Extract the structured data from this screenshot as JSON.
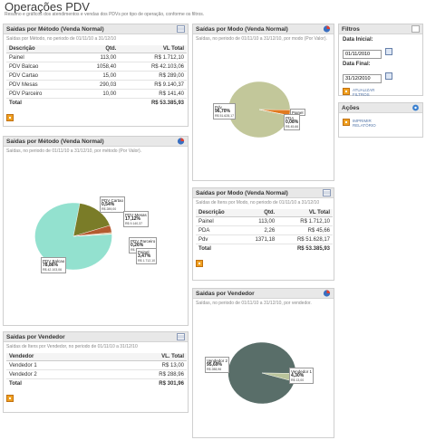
{
  "page": {
    "title": "Operações PDV",
    "subtitle": "Resumo e gráficos dos atendimentos e vendas dos PDVs por tipo de operação, conforme os filtros."
  },
  "metodo_table": {
    "title": "Saidas por Método (Venda Normal)",
    "desc": "Saídas por Método, no periodo de 01/11/10 a 31/12/10",
    "headers": [
      "Descrição",
      "Qtd.",
      "VL Total"
    ],
    "rows": [
      [
        "Painel",
        "113,00",
        "R$ 1.712,10"
      ],
      [
        "PDV Balcao",
        "1058,40",
        "R$ 42.103,06"
      ],
      [
        "PDV Cartao",
        "15,00",
        "R$ 289,00"
      ],
      [
        "PDV Mesas",
        "290,03",
        "R$ 9.140,37"
      ],
      [
        "PDV Parceiro",
        "10,00",
        "R$ 141,40"
      ]
    ],
    "total_label": "Total",
    "total_value": "R$ 53.385,93"
  },
  "metodo_chart": {
    "title": "Saidas por Método (Venda Normal)",
    "desc": "Saídas, no periodo de 01/11/10 a 31/12/10, por método (Por Valor).",
    "labels": [
      {
        "name": "PDV Cartao",
        "pct": "0,54%",
        "val": "R$ 289,00"
      },
      {
        "name": "PDV Mesas",
        "pct": "17,12%",
        "val": "R$ 9.140,37"
      },
      {
        "name": "PDV Parceiro",
        "pct": "0,26%",
        "val": "R$ 141,40"
      },
      {
        "name": "Painel",
        "pct": "3,47%",
        "val": "R$ 1.712,10"
      },
      {
        "name": "PDV Balcao",
        "pct": "78,86%",
        "val": "R$ 42.103,06"
      }
    ]
  },
  "vendedor_table": {
    "title": "Saidas por Vendedor",
    "desc": "Saídas de Itens por Vendedor, no periodo de 01/11/10 a 31/12/10",
    "headers": [
      "Vendedor",
      "VL. Total"
    ],
    "rows": [
      [
        "Vendedor 1",
        "R$ 13,00"
      ],
      [
        "Vendedor 2",
        "R$ 288,96"
      ]
    ],
    "total_label": "Total",
    "total_value": "R$ 301,96"
  },
  "modo_chart": {
    "title": "Saídas por Modo (Venda Normal)",
    "desc": "Saídas, no periodo de 01/11/10 a 31/12/10, por modo (Por Valor).",
    "labels": [
      {
        "name": "Pdv",
        "pct": "96,70%",
        "val": "R$ 51.628,17"
      },
      {
        "name": "Painel",
        "pct": "",
        "val": ""
      },
      {
        "name": "PDA",
        "pct": "0,08%",
        "val": "R$ 45,66"
      }
    ]
  },
  "modo_table": {
    "title": "Saídas por Modo (Venda Normal)",
    "desc": "Saídas de Itens por Modo, no periodo de 01/11/10 a 31/12/10",
    "headers": [
      "Descrição",
      "Qtd.",
      "VL Total"
    ],
    "rows": [
      [
        "Painel",
        "113,00",
        "R$ 1.712,10"
      ],
      [
        "PDA",
        "2,26",
        "R$ 45,66"
      ],
      [
        "Pdv",
        "1371,18",
        "R$ 51.628,17"
      ]
    ],
    "total_label": "Total",
    "total_value": "R$ 53.385,93"
  },
  "vendedor_chart": {
    "title": "Saidas por Vendedor",
    "desc": "Saídas, no periodo de 01/11/10 a 31/12/10, por vendedor.",
    "labels": [
      {
        "name": "Vendedor 2",
        "pct": "95,69%",
        "val": "R$ 288,96"
      },
      {
        "name": "Vendedor 1",
        "pct": "4,30%",
        "val": "R$ 13,00"
      }
    ]
  },
  "filtros": {
    "title": "Filtros",
    "data_inicial_label": "Data Inicial:",
    "data_inicial_value": "01/11/2010",
    "data_final_label": "Data Final:",
    "data_final_value": "31/12/2010",
    "atualizar_label": "ATUALIZAR FILTROS"
  },
  "acoes": {
    "title": "Ações",
    "imprimir_label": "IMPRIMIR RELATÓRIO"
  },
  "colors": {
    "balcao": "#93e1cf",
    "mesas": "#7a7c28",
    "painel": "#b45a30",
    "pdv": "#c2c79a",
    "pda_slice": "#e07a20",
    "vendedor2": "#596e69",
    "vendedor1": "#b9c49b"
  },
  "chart_data": [
    {
      "type": "pie",
      "title": "Saidas por Método (Venda Normal)",
      "categories": [
        "PDV Balcao",
        "PDV Mesas",
        "Painel",
        "PDV Cartao",
        "PDV Parceiro"
      ],
      "values": [
        78.86,
        17.12,
        3.47,
        0.54,
        0.26
      ]
    },
    {
      "type": "pie",
      "title": "Saídas por Modo (Venda Normal)",
      "categories": [
        "Pdv",
        "Painel",
        "PDA"
      ],
      "values": [
        96.7,
        3.21,
        0.08
      ]
    },
    {
      "type": "pie",
      "title": "Saidas por Vendedor",
      "categories": [
        "Vendedor 2",
        "Vendedor 1"
      ],
      "values": [
        95.69,
        4.3
      ]
    }
  ]
}
